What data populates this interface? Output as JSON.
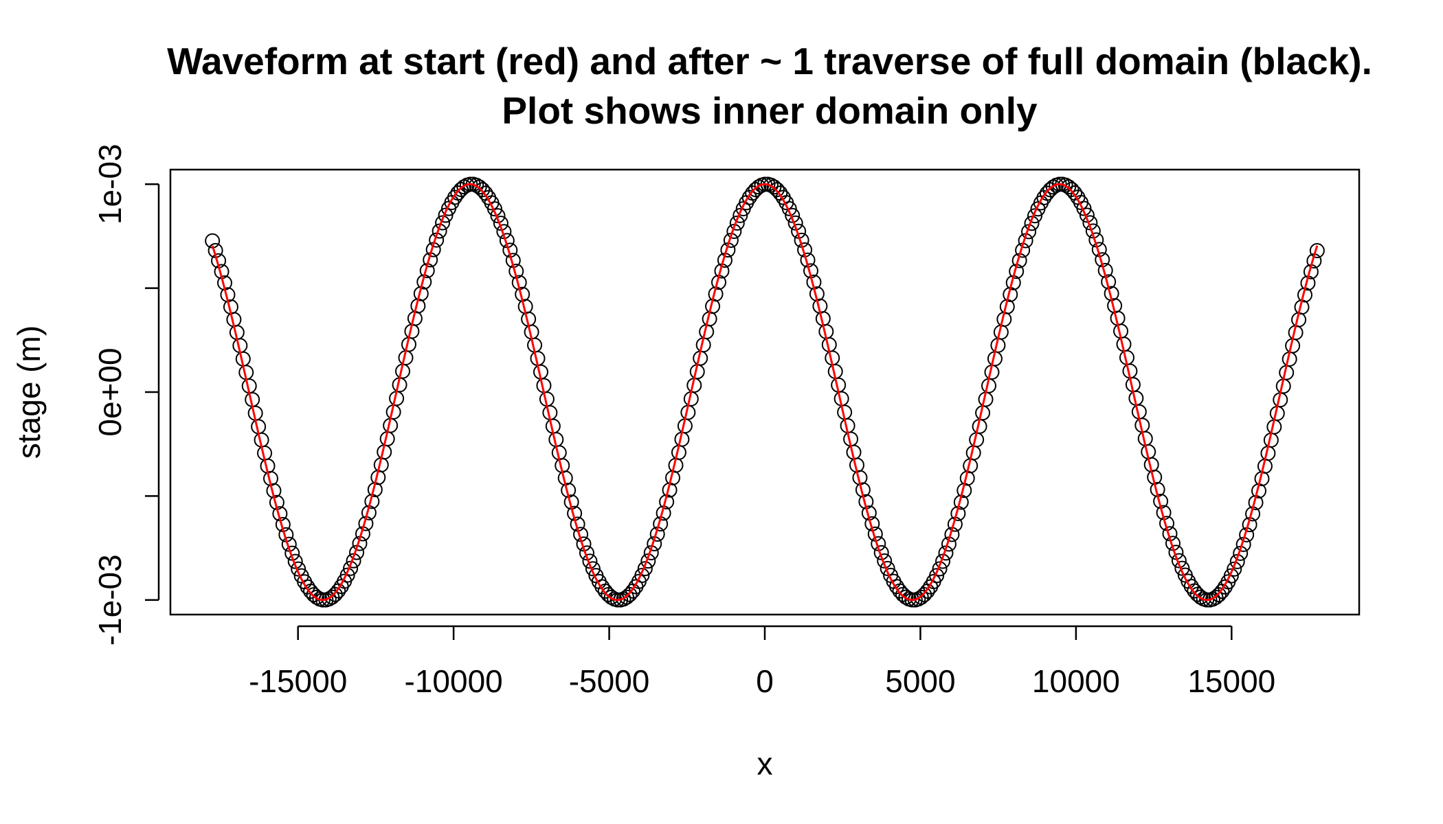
{
  "chart_data": {
    "type": "scatter",
    "title": [
      "Waveform at start (red) and after ~ 1 traverse of full domain (black).",
      "Plot shows inner domain only"
    ],
    "xlabel": "x",
    "ylabel": "stage (m)",
    "xlim": [
      -19100,
      19100
    ],
    "ylim": [
      -0.00107,
      0.00107
    ],
    "x_ticks": [
      -15000,
      -10000,
      -5000,
      0,
      5000,
      10000,
      15000
    ],
    "x_tick_labels": [
      "-15000",
      "-10000",
      "-5000",
      "0",
      "5000",
      "10000",
      "15000"
    ],
    "y_ticks": [
      -0.001,
      -0.0005,
      0,
      0.0005,
      0.001
    ],
    "y_tick_labels": [
      "-1e-03",
      "",
      "0e+00",
      "",
      "1e-03"
    ],
    "grid": false,
    "legend": "none",
    "series": [
      {
        "style": "points",
        "color": "#000000",
        "x_start": -17750,
        "x_end": 17750,
        "n_points": 361,
        "function": "0.001*cos(2*pi*(x-50)/9470)"
      },
      {
        "style": "line",
        "color": "#ff0000",
        "x_start": -17750,
        "x_end": 17750,
        "function": "0.001*cos(2*pi*x/9470)"
      }
    ]
  }
}
